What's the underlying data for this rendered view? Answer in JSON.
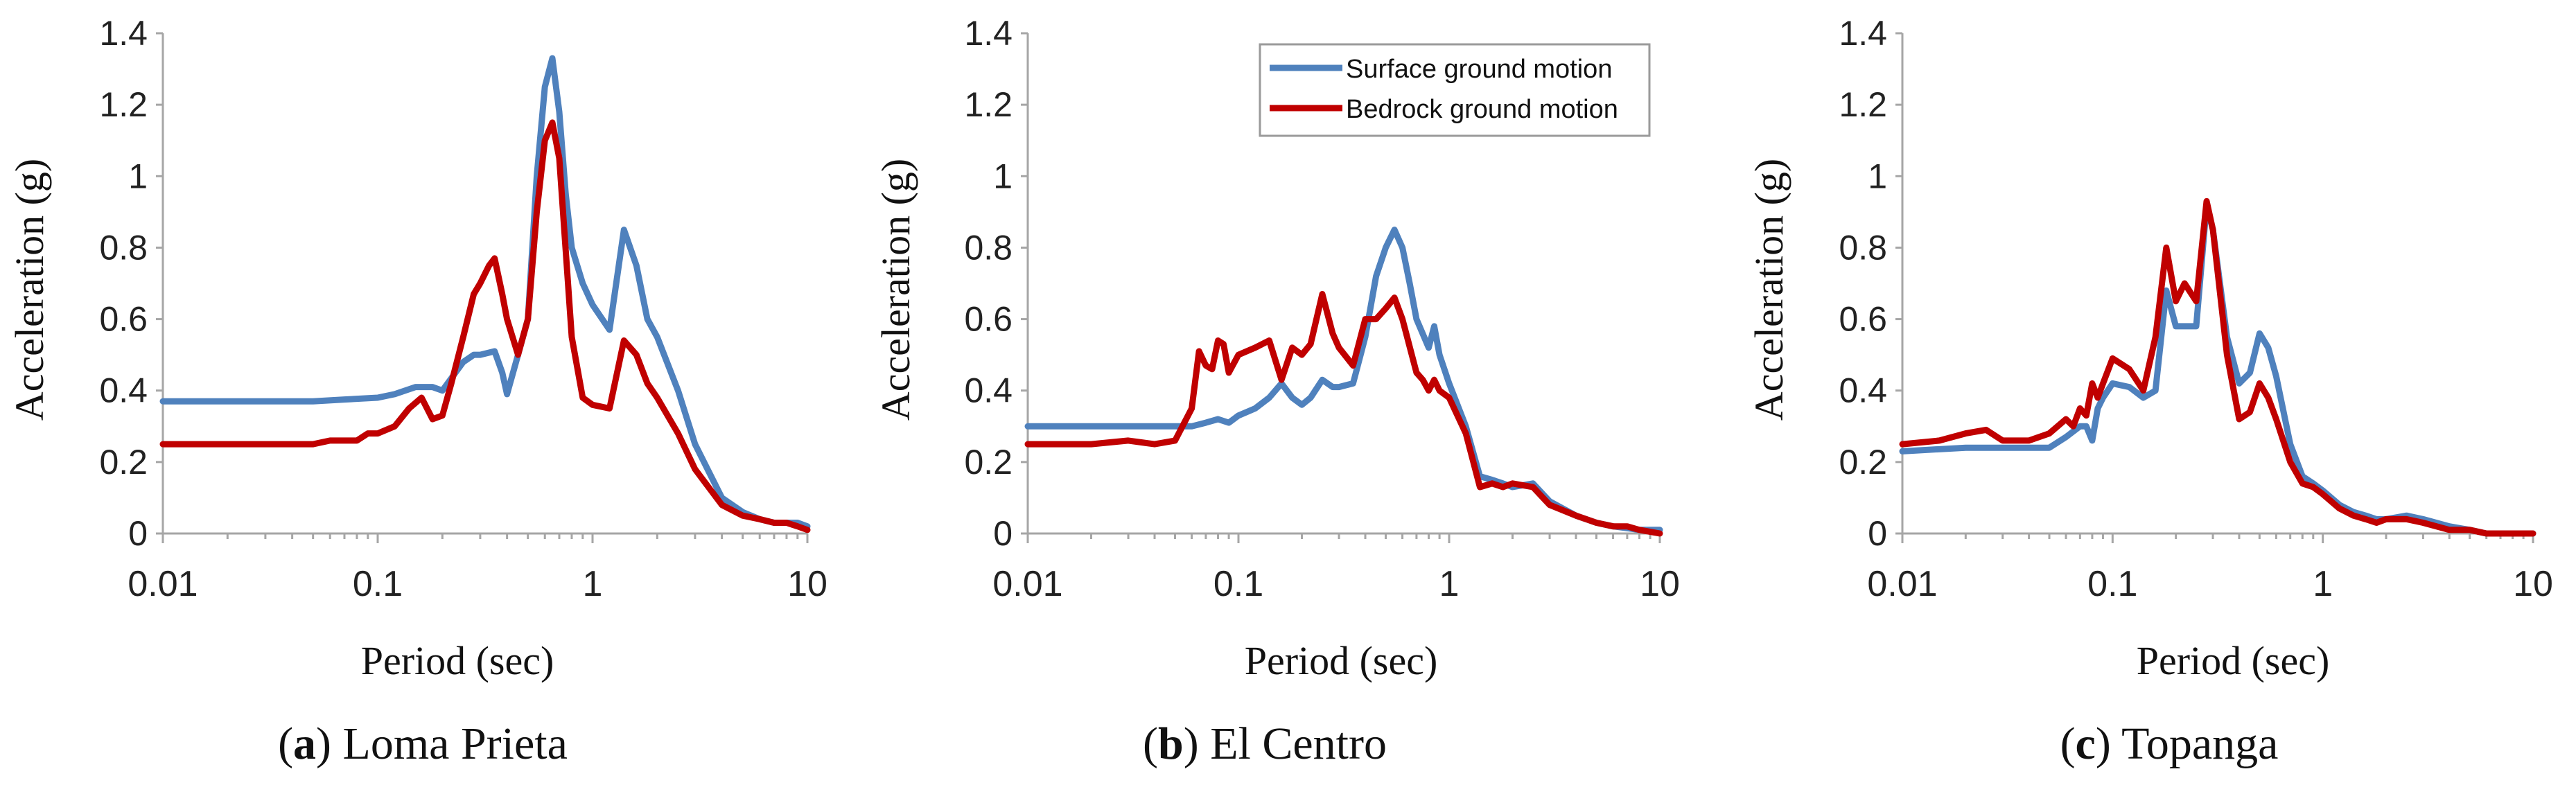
{
  "figure": {
    "legend": {
      "surface_label": "Surface ground motion",
      "bedrock_label": "Bedrock ground motion"
    },
    "colors": {
      "surface": "#4F81BD",
      "bedrock": "#C00000",
      "axis": "#A6A6A6"
    }
  },
  "chart_data": [
    {
      "type": "line",
      "panel_letter": "a",
      "caption": "Loma Prieta",
      "xlabel": "Period (sec)",
      "ylabel": "Acceleration (g)",
      "xscale": "log",
      "xlim": [
        0.01,
        10
      ],
      "ylim": [
        0,
        1.4
      ],
      "xticks": [
        "0.01",
        "0.1",
        "1",
        "10"
      ],
      "yticks": [
        "0",
        "0.2",
        "0.4",
        "0.6",
        "0.8",
        "1",
        "1.2",
        "1.4"
      ],
      "legend": "none",
      "series": [
        {
          "name": "Surface ground motion",
          "x": [
            0.01,
            0.02,
            0.05,
            0.07,
            0.1,
            0.12,
            0.15,
            0.18,
            0.2,
            0.25,
            0.28,
            0.3,
            0.35,
            0.38,
            0.4,
            0.45,
            0.5,
            0.55,
            0.6,
            0.65,
            0.7,
            0.75,
            0.8,
            0.9,
            1.0,
            1.2,
            1.4,
            1.6,
            1.8,
            2.0,
            2.5,
            3.0,
            4.0,
            5.0,
            6.0,
            7.0,
            8.0,
            9.0,
            10.0
          ],
          "y": [
            0.37,
            0.37,
            0.37,
            0.375,
            0.38,
            0.39,
            0.41,
            0.41,
            0.4,
            0.48,
            0.5,
            0.5,
            0.51,
            0.45,
            0.39,
            0.5,
            0.6,
            1.0,
            1.25,
            1.33,
            1.18,
            0.95,
            0.8,
            0.7,
            0.64,
            0.57,
            0.85,
            0.75,
            0.6,
            0.55,
            0.4,
            0.25,
            0.1,
            0.06,
            0.04,
            0.03,
            0.03,
            0.03,
            0.02
          ]
        },
        {
          "name": "Bedrock ground motion",
          "x": [
            0.01,
            0.015,
            0.02,
            0.03,
            0.05,
            0.06,
            0.07,
            0.08,
            0.09,
            0.1,
            0.12,
            0.14,
            0.16,
            0.18,
            0.2,
            0.22,
            0.25,
            0.28,
            0.3,
            0.33,
            0.35,
            0.38,
            0.4,
            0.45,
            0.5,
            0.55,
            0.6,
            0.65,
            0.7,
            0.8,
            0.9,
            1.0,
            1.2,
            1.4,
            1.6,
            1.8,
            2.0,
            2.5,
            3.0,
            4.0,
            5.0,
            6.0,
            7.0,
            8.0,
            9.0,
            10.0
          ],
          "y": [
            0.25,
            0.25,
            0.25,
            0.25,
            0.25,
            0.26,
            0.26,
            0.26,
            0.28,
            0.28,
            0.3,
            0.35,
            0.38,
            0.32,
            0.33,
            0.42,
            0.55,
            0.67,
            0.7,
            0.75,
            0.77,
            0.67,
            0.6,
            0.5,
            0.6,
            0.9,
            1.1,
            1.15,
            1.05,
            0.55,
            0.38,
            0.36,
            0.35,
            0.54,
            0.5,
            0.42,
            0.38,
            0.28,
            0.18,
            0.08,
            0.05,
            0.04,
            0.03,
            0.03,
            0.02,
            0.01
          ]
        }
      ]
    },
    {
      "type": "line",
      "panel_letter": "b",
      "caption": "El Centro",
      "xlabel": "Period (sec)",
      "ylabel": "Acceleration (g)",
      "xscale": "log",
      "xlim": [
        0.01,
        10
      ],
      "ylim": [
        0,
        1.4
      ],
      "xticks": [
        "0.01",
        "0.1",
        "1",
        "10"
      ],
      "yticks": [
        "0",
        "0.2",
        "0.4",
        "0.6",
        "0.8",
        "1",
        "1.2",
        "1.4"
      ],
      "legend": "top-right",
      "series": [
        {
          "name": "Surface ground motion",
          "x": [
            0.01,
            0.02,
            0.03,
            0.05,
            0.06,
            0.07,
            0.08,
            0.09,
            0.1,
            0.12,
            0.14,
            0.16,
            0.18,
            0.2,
            0.22,
            0.25,
            0.28,
            0.3,
            0.35,
            0.4,
            0.45,
            0.5,
            0.55,
            0.6,
            0.65,
            0.7,
            0.8,
            0.85,
            0.9,
            1.0,
            1.2,
            1.4,
            1.6,
            1.8,
            2.0,
            2.5,
            3.0,
            4.0,
            5.0,
            6.0,
            7.0,
            8.0,
            10.0
          ],
          "y": [
            0.3,
            0.3,
            0.3,
            0.3,
            0.3,
            0.31,
            0.32,
            0.31,
            0.33,
            0.35,
            0.38,
            0.42,
            0.38,
            0.36,
            0.38,
            0.43,
            0.41,
            0.41,
            0.42,
            0.55,
            0.72,
            0.8,
            0.85,
            0.8,
            0.7,
            0.6,
            0.52,
            0.58,
            0.5,
            0.42,
            0.3,
            0.16,
            0.15,
            0.14,
            0.13,
            0.14,
            0.09,
            0.05,
            0.03,
            0.02,
            0.015,
            0.01,
            0.01
          ]
        },
        {
          "name": "Bedrock ground motion",
          "x": [
            0.01,
            0.02,
            0.03,
            0.04,
            0.05,
            0.06,
            0.065,
            0.07,
            0.075,
            0.08,
            0.085,
            0.09,
            0.1,
            0.12,
            0.14,
            0.16,
            0.18,
            0.2,
            0.22,
            0.25,
            0.28,
            0.3,
            0.35,
            0.4,
            0.45,
            0.5,
            0.55,
            0.6,
            0.7,
            0.75,
            0.8,
            0.85,
            0.9,
            1.0,
            1.2,
            1.4,
            1.6,
            1.8,
            2.0,
            2.5,
            3.0,
            4.0,
            5.0,
            6.0,
            7.0,
            8.0,
            10.0
          ],
          "y": [
            0.25,
            0.25,
            0.26,
            0.25,
            0.26,
            0.35,
            0.51,
            0.47,
            0.46,
            0.54,
            0.53,
            0.45,
            0.5,
            0.52,
            0.54,
            0.43,
            0.52,
            0.5,
            0.53,
            0.67,
            0.56,
            0.52,
            0.47,
            0.6,
            0.6,
            0.63,
            0.66,
            0.6,
            0.45,
            0.43,
            0.4,
            0.43,
            0.4,
            0.38,
            0.28,
            0.13,
            0.14,
            0.13,
            0.14,
            0.13,
            0.08,
            0.05,
            0.03,
            0.02,
            0.02,
            0.01,
            0.0
          ]
        }
      ]
    },
    {
      "type": "line",
      "panel_letter": "c",
      "caption": "Topanga",
      "xlabel": "Period (sec)",
      "ylabel": "Acceleration (g)",
      "xscale": "log",
      "xlim": [
        0.01,
        10
      ],
      "ylim": [
        0,
        1.4
      ],
      "xticks": [
        "0.01",
        "0.1",
        "1",
        "10"
      ],
      "yticks": [
        "0",
        "0.2",
        "0.4",
        "0.6",
        "0.8",
        "1",
        "1.2",
        "1.4"
      ],
      "legend": "none",
      "series": [
        {
          "name": "Surface ground motion",
          "x": [
            0.01,
            0.02,
            0.03,
            0.04,
            0.05,
            0.06,
            0.07,
            0.075,
            0.08,
            0.085,
            0.09,
            0.1,
            0.12,
            0.14,
            0.16,
            0.18,
            0.2,
            0.22,
            0.25,
            0.28,
            0.3,
            0.35,
            0.4,
            0.45,
            0.5,
            0.55,
            0.6,
            0.7,
            0.8,
            0.9,
            1.0,
            1.2,
            1.4,
            1.6,
            1.8,
            2.0,
            2.5,
            3.0,
            4.0,
            5.0,
            6.0,
            8.0,
            10.0
          ],
          "y": [
            0.23,
            0.24,
            0.24,
            0.24,
            0.24,
            0.27,
            0.3,
            0.3,
            0.26,
            0.35,
            0.38,
            0.42,
            0.41,
            0.38,
            0.4,
            0.68,
            0.58,
            0.58,
            0.58,
            0.92,
            0.85,
            0.55,
            0.42,
            0.45,
            0.56,
            0.52,
            0.44,
            0.25,
            0.16,
            0.14,
            0.12,
            0.08,
            0.06,
            0.05,
            0.04,
            0.04,
            0.05,
            0.04,
            0.02,
            0.01,
            0.0,
            0.0,
            0.0
          ]
        },
        {
          "name": "Bedrock ground motion",
          "x": [
            0.01,
            0.015,
            0.02,
            0.025,
            0.03,
            0.04,
            0.05,
            0.06,
            0.065,
            0.07,
            0.075,
            0.08,
            0.085,
            0.09,
            0.1,
            0.12,
            0.14,
            0.16,
            0.18,
            0.2,
            0.22,
            0.25,
            0.28,
            0.3,
            0.35,
            0.4,
            0.45,
            0.5,
            0.55,
            0.6,
            0.7,
            0.8,
            0.9,
            1.0,
            1.2,
            1.4,
            1.6,
            1.8,
            2.0,
            2.5,
            3.0,
            4.0,
            5.0,
            6.0,
            8.0,
            10.0
          ],
          "y": [
            0.25,
            0.26,
            0.28,
            0.29,
            0.26,
            0.26,
            0.28,
            0.32,
            0.3,
            0.35,
            0.33,
            0.42,
            0.38,
            0.42,
            0.49,
            0.46,
            0.4,
            0.55,
            0.8,
            0.65,
            0.7,
            0.65,
            0.93,
            0.85,
            0.5,
            0.32,
            0.34,
            0.42,
            0.38,
            0.32,
            0.2,
            0.14,
            0.13,
            0.11,
            0.07,
            0.05,
            0.04,
            0.03,
            0.04,
            0.04,
            0.03,
            0.01,
            0.01,
            0.0,
            0.0,
            0.0
          ]
        }
      ]
    }
  ]
}
